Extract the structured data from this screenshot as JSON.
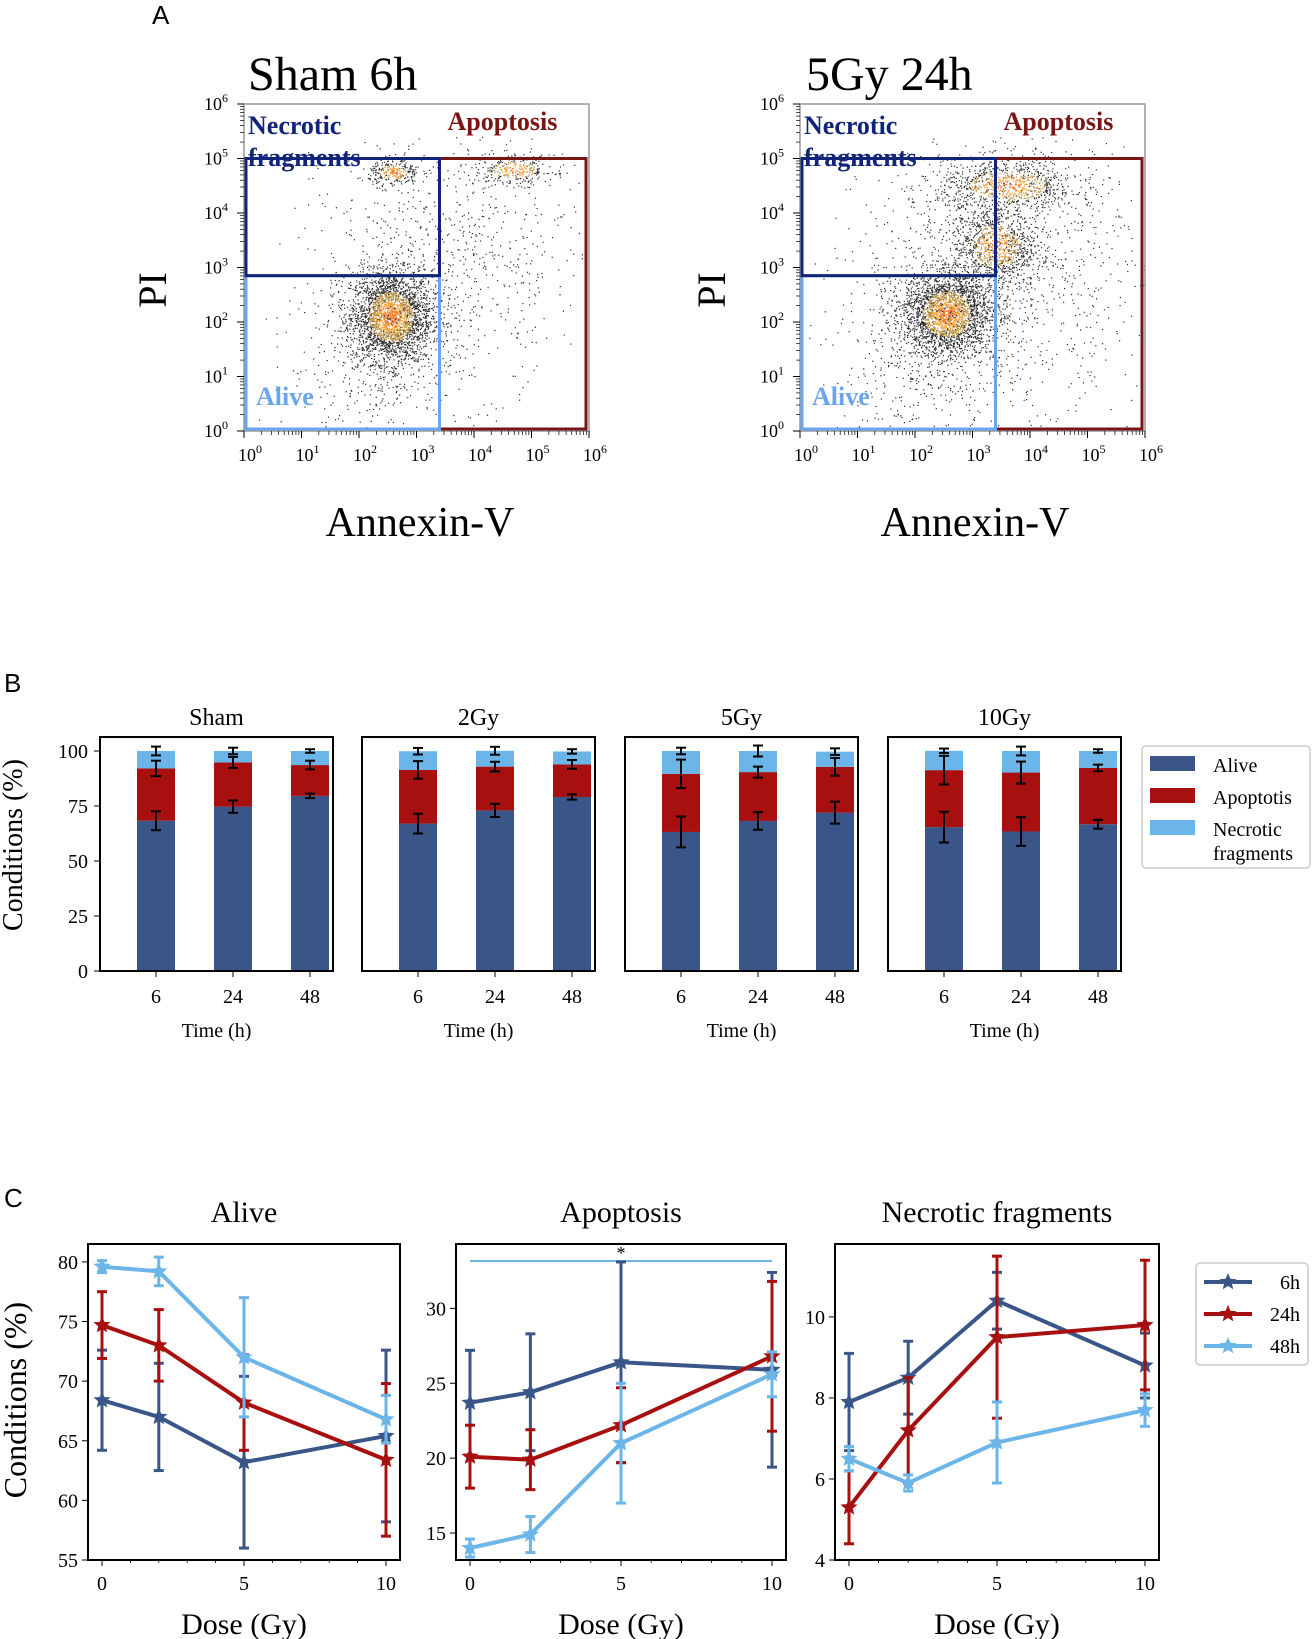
{
  "figure": {
    "panel_labels": [
      "A",
      "B",
      "C"
    ]
  },
  "colors": {
    "alive_dark": "#3a5689",
    "apoptosis_red": "#a80f0f",
    "necrotic_light": "#6cb5e9",
    "gate_necrotic": "#12237a",
    "gate_apoptosis": "#7a1515",
    "gate_alive": "#6aa5f0",
    "dots_core": "#f39a2b"
  },
  "panel_a": {
    "plots": [
      {
        "title": "Sham 6h",
        "xlabel": "Annexin-V",
        "ylabel": "PI"
      },
      {
        "title": "5Gy 24h",
        "xlabel": "Annexin-V",
        "ylabel": "PI"
      }
    ],
    "gates": {
      "necrotic_line1": "Necrotic",
      "necrotic_line2": "fragments",
      "apoptosis": "Apoptosis",
      "alive": "Alive"
    },
    "tick_exponents": [
      "0",
      "1",
      "2",
      "3",
      "4",
      "5",
      "6"
    ],
    "tick_base": "10"
  },
  "chart_data": [
    {
      "type": "bar",
      "panel": "B",
      "subplots": [
        "Sham",
        "2Gy",
        "5Gy",
        "10Gy"
      ],
      "categories": [
        "6",
        "24",
        "48"
      ],
      "xlabel": "Time (h)",
      "ylabel": "Conditions (%)",
      "ylim": [
        0,
        100
      ],
      "yticks": [
        0,
        25,
        50,
        75,
        100
      ],
      "legend": [
        "Alive",
        "Apoptotis",
        "Necrotic fragments"
      ],
      "legend_location": "right",
      "stacks": [
        {
          "name": "Sham",
          "alive": [
            68.3,
            74.7,
            79.6
          ],
          "apoptosis": [
            23.8,
            20.1,
            14.0
          ],
          "necrotic": [
            7.9,
            5.2,
            6.4
          ],
          "err_alive": [
            4.3,
            2.8,
            1.0
          ],
          "err_top": [
            3.5,
            2.5,
            2.0
          ],
          "err_total": [
            2.0,
            1.5,
            0.8
          ]
        },
        {
          "name": "2Gy",
          "alive": [
            67.0,
            73.0,
            79.1
          ],
          "apoptosis": [
            24.4,
            19.9,
            14.8
          ],
          "necrotic": [
            8.5,
            7.2,
            5.9
          ],
          "err_alive": [
            4.5,
            3.0,
            1.2
          ],
          "err_top": [
            4.0,
            2.2,
            2.0
          ],
          "err_total": [
            1.5,
            1.8,
            1.0
          ]
        },
        {
          "name": "5Gy",
          "alive": [
            63.2,
            68.2,
            72.0
          ],
          "apoptosis": [
            26.4,
            22.2,
            20.8
          ],
          "necrotic": [
            10.4,
            9.6,
            6.9
          ],
          "err_alive": [
            7.0,
            4.0,
            5.0
          ],
          "err_top": [
            6.5,
            2.5,
            4.0
          ],
          "err_total": [
            1.5,
            2.5,
            1.5
          ]
        },
        {
          "name": "10Gy",
          "alive": [
            65.4,
            63.4,
            66.7
          ],
          "apoptosis": [
            25.9,
            26.8,
            25.6
          ],
          "necrotic": [
            8.8,
            9.8,
            7.7
          ],
          "err_alive": [
            7.0,
            6.5,
            2.0
          ],
          "err_top": [
            6.5,
            5.0,
            1.5
          ],
          "err_total": [
            1.0,
            2.0,
            0.8
          ]
        }
      ]
    },
    {
      "type": "line",
      "panel": "C",
      "title": "Alive",
      "x": [
        0,
        2,
        5,
        10
      ],
      "xticks": [
        0,
        5,
        10
      ],
      "xlabel": "Dose (Gy)",
      "ylabel": "Conditions (%)",
      "ylim": [
        55,
        81.5
      ],
      "yticks": [
        55,
        60,
        65,
        70,
        75,
        80
      ],
      "series": [
        {
          "name": "6h",
          "values": [
            68.4,
            67.0,
            63.2,
            65.4
          ],
          "errors": [
            4.2,
            4.5,
            7.2,
            7.2
          ]
        },
        {
          "name": "24h",
          "values": [
            74.7,
            73.0,
            68.2,
            63.4
          ],
          "errors": [
            2.8,
            3.0,
            4.0,
            6.4
          ]
        },
        {
          "name": "48h",
          "values": [
            79.6,
            79.2,
            72.0,
            66.8
          ],
          "errors": [
            0.5,
            1.2,
            5.0,
            2.0
          ]
        }
      ]
    },
    {
      "type": "line",
      "panel": "C",
      "title": "Apoptosis",
      "x": [
        0,
        2,
        5,
        10
      ],
      "xticks": [
        0,
        5,
        10
      ],
      "xlabel": "Dose (Gy)",
      "ylabel": "",
      "ylim": [
        13.2,
        34.3
      ],
      "yticks": [
        15,
        20,
        25,
        30
      ],
      "annotation": "*",
      "series": [
        {
          "name": "6h",
          "values": [
            23.7,
            24.4,
            26.4,
            25.9
          ],
          "errors": [
            3.5,
            3.9,
            6.7,
            6.5
          ]
        },
        {
          "name": "24h",
          "values": [
            20.1,
            19.9,
            22.2,
            26.8
          ],
          "errors": [
            2.1,
            2.0,
            2.5,
            5.0
          ]
        },
        {
          "name": "48h",
          "values": [
            14.0,
            14.9,
            21.0,
            25.6
          ],
          "errors": [
            0.6,
            1.2,
            4.0,
            1.5
          ]
        }
      ]
    },
    {
      "type": "line",
      "panel": "C",
      "title": "Necrotic fragments",
      "x": [
        0,
        2,
        5,
        10
      ],
      "xticks": [
        0,
        5,
        10
      ],
      "xlabel": "Dose (Gy)",
      "ylabel": "",
      "ylim": [
        4,
        11.8
      ],
      "yticks": [
        4,
        6,
        8,
        10
      ],
      "legend": [
        "6h",
        "24h",
        "48h"
      ],
      "legend_location": "right",
      "series": [
        {
          "name": "6h",
          "values": [
            7.9,
            8.5,
            10.4,
            8.8
          ],
          "errors": [
            1.2,
            0.9,
            0.7,
            0.8
          ]
        },
        {
          "name": "24h",
          "values": [
            5.3,
            7.2,
            9.5,
            9.8
          ],
          "errors": [
            0.9,
            1.3,
            2.0,
            1.6
          ]
        },
        {
          "name": "48h",
          "values": [
            6.5,
            5.9,
            6.9,
            7.7
          ],
          "errors": [
            0.3,
            0.2,
            1.0,
            0.4
          ]
        }
      ]
    }
  ]
}
